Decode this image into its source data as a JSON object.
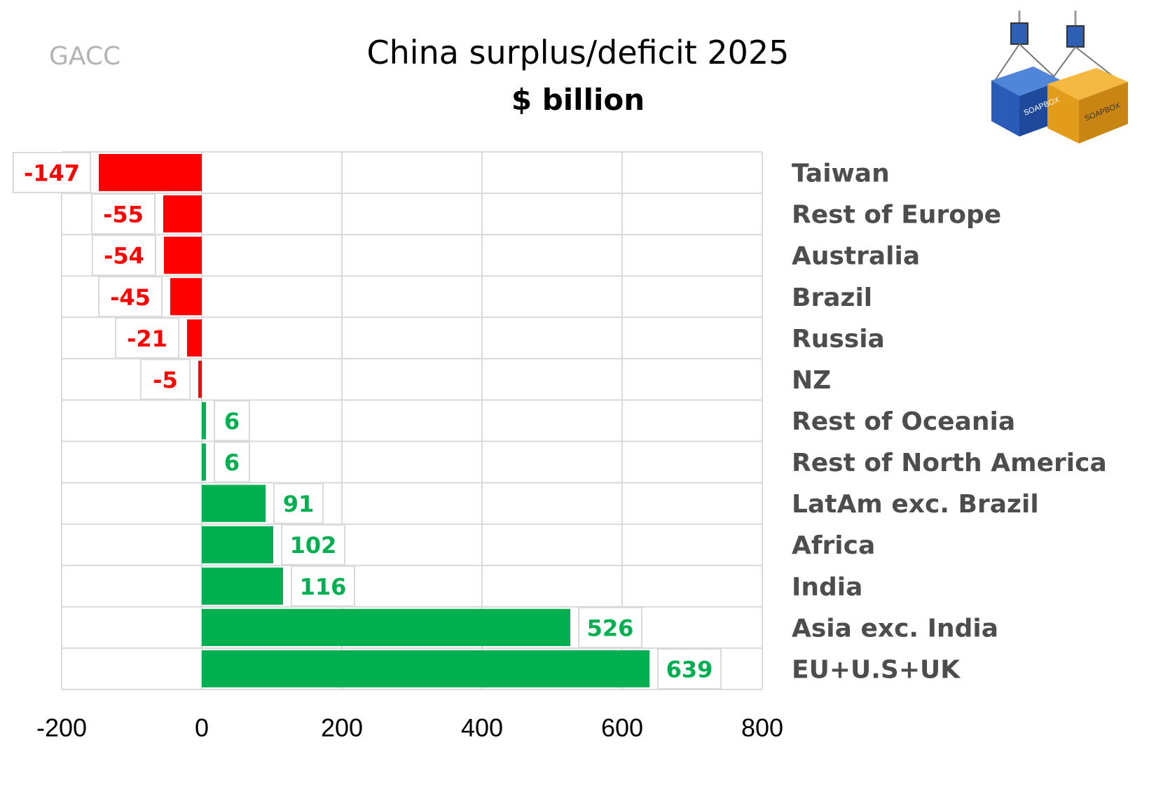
{
  "source": "GACC",
  "logo": {
    "name": "soapbox-containers-logo",
    "text": "SOAPBOX"
  },
  "chart_data": {
    "type": "bar",
    "orientation": "horizontal",
    "title": "China surplus/deficit 2025",
    "subtitle": "$ billion",
    "categories": [
      "Taiwan",
      "Rest of Europe",
      "Australia",
      "Brazil",
      "Russia",
      "NZ",
      "Rest of Oceania",
      "Rest of North America",
      "LatAm exc. Brazil",
      "Africa",
      "India",
      "Asia exc. India",
      "EU+U.S+UK"
    ],
    "values": [
      -147,
      -55,
      -54,
      -45,
      -21,
      -5,
      6,
      6,
      91,
      102,
      116,
      526,
      639
    ],
    "xlim": [
      -200,
      800
    ],
    "xticks": [
      -200,
      0,
      200,
      400,
      600,
      800
    ],
    "grid": true,
    "colors": {
      "positive": "#00b050",
      "negative": "#ff0000",
      "grid": "#d9d9d9",
      "label": "#4d4d4d"
    }
  }
}
